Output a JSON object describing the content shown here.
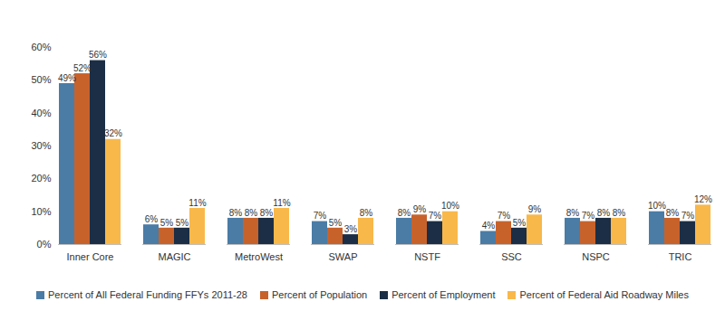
{
  "chart_data": {
    "type": "bar",
    "categories": [
      "Inner Core",
      "MAGIC",
      "MetroWest",
      "SWAP",
      "NSTF",
      "SSC",
      "NSPC",
      "TRIC"
    ],
    "series": [
      {
        "name": "Percent of All Federal Funding FFYs 2011-28",
        "color": "#4a7ca6",
        "values": [
          49,
          6,
          8,
          7,
          8,
          4,
          8,
          10
        ],
        "value_labels": [
          "49%",
          "6%",
          "8%",
          "7%",
          "8%",
          "4%",
          "8%",
          "10%"
        ]
      },
      {
        "name": "Percent of Population",
        "color": "#c8622b",
        "values": [
          52,
          5,
          8,
          5,
          9,
          7,
          7,
          8
        ],
        "value_labels": [
          "52%",
          "5%",
          "8%",
          "5%",
          "9%",
          "7%",
          "7%",
          "8%"
        ]
      },
      {
        "name": "Percent of Employment",
        "color": "#1b2e45",
        "values": [
          56,
          5,
          8,
          3,
          7,
          5,
          8,
          7
        ],
        "value_labels": [
          "56%",
          "5%",
          "8%",
          "3%",
          "7%",
          "5%",
          "8%",
          "7%"
        ]
      },
      {
        "name": "Percent of Federal Aid Roadway Miles",
        "color": "#f8b84a",
        "values": [
          32,
          11,
          11,
          8,
          10,
          9,
          8,
          12
        ],
        "value_labels": [
          "32%",
          "11%",
          "11%",
          "8%",
          "10%",
          "9%",
          "8%",
          "12%"
        ]
      }
    ],
    "ylim": [
      0,
      60
    ],
    "yticks": [
      {
        "value": 0,
        "label": "0%"
      },
      {
        "value": 10,
        "label": "10%"
      },
      {
        "value": 20,
        "label": "20%"
      },
      {
        "value": 30,
        "label": "30%"
      },
      {
        "value": 40,
        "label": "40%"
      },
      {
        "value": 50,
        "label": "50%"
      },
      {
        "value": 60,
        "label": "60%"
      }
    ],
    "grid": false,
    "legend": "bottom",
    "data_labels": true
  }
}
